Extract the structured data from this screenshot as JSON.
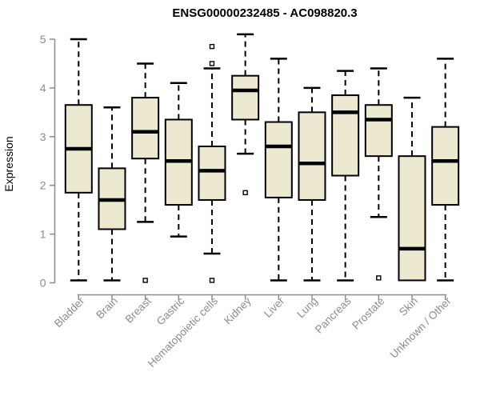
{
  "title": "ENSG00000232485 - AC098820.3",
  "colors": {
    "background": "#FFFFFF",
    "box_fill": "#EDE8D0",
    "box_stroke": "#000000",
    "median_stroke": "#000000",
    "whisker_stroke": "#000000",
    "outlier_stroke": "#000000",
    "outlier_fill": "#FFFFFF",
    "axis": "#8C8C8C",
    "tick_label": "#8C8C8C",
    "title_color": "#000000"
  },
  "chart_data": {
    "type": "boxplot",
    "title": "ENSG00000232485 - AC098820.3",
    "xlabel": "",
    "ylabel": "Expression",
    "ylim": [
      0,
      5
    ],
    "yticks": [
      0,
      1,
      2,
      3,
      4,
      5
    ],
    "grid": "off",
    "legend": "none",
    "categories": [
      "Bladder",
      "Brain",
      "Breast",
      "Gastric",
      "Hematopoietic cells",
      "Kidney",
      "Liver",
      "Lung",
      "Pancreas",
      "Prostate",
      "Skin",
      "Unknown / Other"
    ],
    "series": [
      {
        "name": "Bladder",
        "min": 0.05,
        "q1": 1.85,
        "median": 2.75,
        "q3": 3.65,
        "max": 5.0,
        "outliers": []
      },
      {
        "name": "Brain",
        "min": 0.05,
        "q1": 1.1,
        "median": 1.7,
        "q3": 2.35,
        "max": 3.6,
        "outliers": []
      },
      {
        "name": "Breast",
        "min": 1.25,
        "q1": 2.55,
        "median": 3.1,
        "q3": 3.8,
        "max": 4.5,
        "outliers": [
          0.05
        ]
      },
      {
        "name": "Gastric",
        "min": 0.95,
        "q1": 1.6,
        "median": 2.5,
        "q3": 3.35,
        "max": 4.1,
        "outliers": []
      },
      {
        "name": "Hematopoietic cells",
        "min": 0.6,
        "q1": 1.7,
        "median": 2.3,
        "q3": 2.8,
        "max": 4.4,
        "outliers": [
          4.85,
          4.5,
          0.05
        ]
      },
      {
        "name": "Kidney",
        "min": 2.65,
        "q1": 3.35,
        "median": 3.95,
        "q3": 4.25,
        "max": 5.1,
        "outliers": [
          1.85
        ]
      },
      {
        "name": "Liver",
        "min": 0.05,
        "q1": 1.75,
        "median": 2.8,
        "q3": 3.3,
        "max": 4.6,
        "outliers": []
      },
      {
        "name": "Lung",
        "min": 0.05,
        "q1": 1.7,
        "median": 2.45,
        "q3": 3.5,
        "max": 4.0,
        "outliers": []
      },
      {
        "name": "Pancreas",
        "min": 0.05,
        "q1": 2.2,
        "median": 3.5,
        "q3": 3.85,
        "max": 4.35,
        "outliers": []
      },
      {
        "name": "Prostate",
        "min": 1.35,
        "q1": 2.6,
        "median": 3.35,
        "q3": 3.65,
        "max": 4.4,
        "outliers": [
          0.1
        ]
      },
      {
        "name": "Skin",
        "min": 0.05,
        "q1": 0.05,
        "median": 0.7,
        "q3": 2.6,
        "max": 3.8,
        "outliers": []
      },
      {
        "name": "Unknown / Other",
        "min": 0.05,
        "q1": 1.6,
        "median": 2.5,
        "q3": 3.2,
        "max": 4.6,
        "outliers": []
      }
    ]
  }
}
